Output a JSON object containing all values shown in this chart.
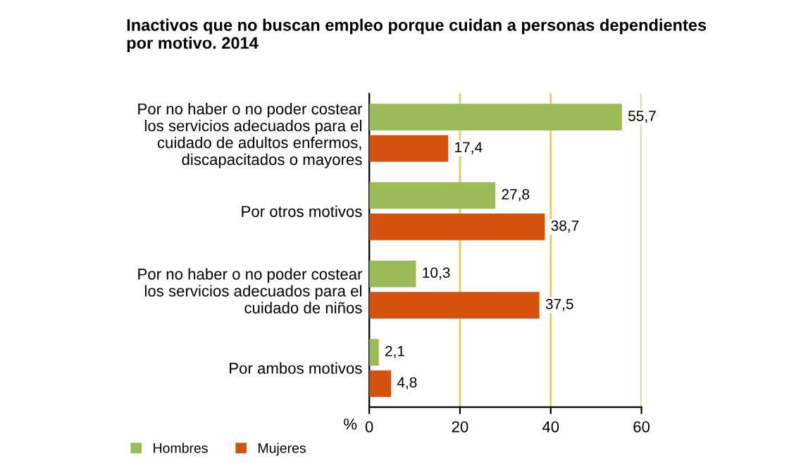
{
  "chart_data": {
    "type": "bar",
    "orientation": "horizontal",
    "title": "Inactivos que no buscan empleo porque cuidan a personas dependientes\npor motivo. 2014",
    "categories": [
      "Por no haber o no poder costear\nlos servicios adecuados para el\ncuidado de adultos enfermos,\ndiscapacitados o mayores",
      "Por otros motivos",
      "Por no haber o no poder costear\nlos servicios adecuados para el\ncuidado de niños",
      "Por ambos motivos"
    ],
    "series": [
      {
        "name": "Hombres",
        "color": "#9bbb59",
        "values": [
          55.7,
          27.8,
          10.3,
          2.1
        ],
        "value_labels": [
          "55,7",
          "27,8",
          "10,3",
          "2,1"
        ]
      },
      {
        "name": "Mujeres",
        "color": "#d4520e",
        "values": [
          17.4,
          38.7,
          37.5,
          4.8
        ],
        "value_labels": [
          "17,4",
          "38,7",
          "37,5",
          "4,8"
        ]
      }
    ],
    "xlabel": "%",
    "xlim": [
      0,
      60
    ],
    "xticks": [
      0,
      20,
      40,
      60
    ],
    "grid": "x",
    "legend": "bottom left"
  }
}
